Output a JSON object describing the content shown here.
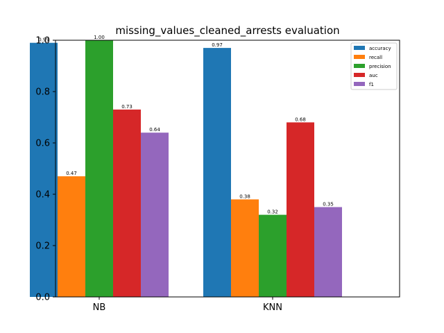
{
  "chart_data": {
    "type": "bar",
    "title": "missing_values_cleaned_arrests evaluation",
    "xlabel": "",
    "ylabel": "",
    "categories": [
      "NB",
      "KNN"
    ],
    "series": [
      {
        "name": "accuracy",
        "color": "#1f77b4",
        "values": [
          0.99,
          0.97
        ],
        "labels": [
          "0.99",
          "0.97"
        ]
      },
      {
        "name": "recall",
        "color": "#ff7f0e",
        "values": [
          0.47,
          0.38
        ],
        "labels": [
          "0.47",
          "0.38"
        ]
      },
      {
        "name": "precision",
        "color": "#2ca02c",
        "values": [
          1.0,
          0.32
        ],
        "labels": [
          "1.00",
          "0.32"
        ]
      },
      {
        "name": "auc",
        "color": "#d62728",
        "values": [
          0.73,
          0.68
        ],
        "labels": [
          "0.73",
          "0.68"
        ]
      },
      {
        "name": "f1",
        "color": "#9467bd",
        "values": [
          0.64,
          0.35
        ],
        "labels": [
          "0.64",
          "0.35"
        ]
      }
    ],
    "ylim": [
      0,
      1.0
    ],
    "yticks": [
      "0.0",
      "0.2",
      "0.4",
      "0.6",
      "0.8",
      "1.0"
    ],
    "grid": false,
    "legend_position": "top-right"
  }
}
